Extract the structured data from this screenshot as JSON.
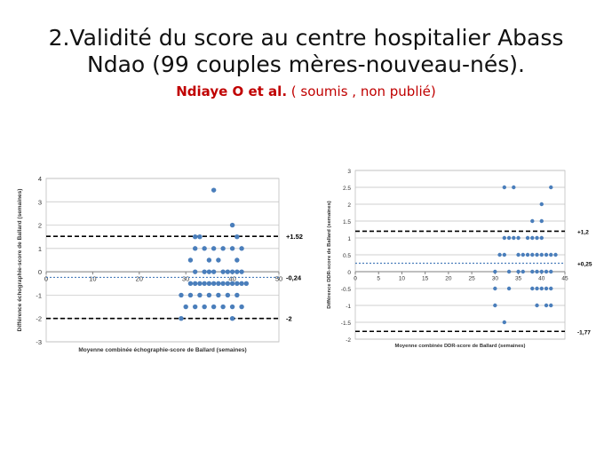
{
  "slide": {
    "title_line1": "2.Validité du score au centre hospitalier Abass",
    "title_line2": "Ndao (99 couples mères-nouveau-nés).",
    "citation_author": "Ndiaye O et al.",
    "citation_note": " ( soumis , non publié)"
  },
  "colors": {
    "points": "#4a7ebb",
    "grid": "#bfbfbf",
    "dash_limits": "#000000",
    "dash_mean": "#4a7ebb",
    "citation": "#c00000"
  },
  "chart_data": [
    {
      "type": "scatter",
      "title": "",
      "xlabel": "Moyenne combinée échographie-score de Ballard (semaines)",
      "ylabel": "Différence échographie-score de Ballard (semaines)",
      "xlim": [
        0,
        50
      ],
      "ylim": [
        -3,
        4
      ],
      "xticks": [
        0,
        10,
        20,
        30,
        40,
        50
      ],
      "yticks": [
        -3,
        -2,
        -1,
        0,
        1,
        2,
        3,
        4
      ],
      "grid": true,
      "reference_lines": [
        {
          "y": 1.52,
          "label": "+1.52",
          "style": "black-dashed"
        },
        {
          "y": -0.24,
          "label": "-0,24",
          "style": "blue-dashed"
        },
        {
          "y": -2,
          "label": "-2",
          "style": "black-dashed"
        }
      ],
      "points": [
        [
          36,
          3.5
        ],
        [
          40,
          2
        ],
        [
          32,
          1.5
        ],
        [
          33,
          1.5
        ],
        [
          41,
          1.5
        ],
        [
          32,
          1
        ],
        [
          34,
          1
        ],
        [
          36,
          1
        ],
        [
          38,
          1
        ],
        [
          40,
          1
        ],
        [
          42,
          1
        ],
        [
          31,
          0.5
        ],
        [
          35,
          0.5
        ],
        [
          37,
          0.5
        ],
        [
          41,
          0.5
        ],
        [
          32,
          0
        ],
        [
          34,
          0
        ],
        [
          35,
          0
        ],
        [
          36,
          0
        ],
        [
          38,
          0
        ],
        [
          39,
          0
        ],
        [
          40,
          0
        ],
        [
          41,
          0
        ],
        [
          42,
          0
        ],
        [
          31,
          -0.5
        ],
        [
          32,
          -0.5
        ],
        [
          33,
          -0.5
        ],
        [
          34,
          -0.5
        ],
        [
          35,
          -0.5
        ],
        [
          36,
          -0.5
        ],
        [
          37,
          -0.5
        ],
        [
          38,
          -0.5
        ],
        [
          39,
          -0.5
        ],
        [
          40,
          -0.5
        ],
        [
          41,
          -0.5
        ],
        [
          42,
          -0.5
        ],
        [
          43,
          -0.5
        ],
        [
          29,
          -1
        ],
        [
          31,
          -1
        ],
        [
          33,
          -1
        ],
        [
          35,
          -1
        ],
        [
          37,
          -1
        ],
        [
          39,
          -1
        ],
        [
          41,
          -1
        ],
        [
          30,
          -1.5
        ],
        [
          32,
          -1.5
        ],
        [
          34,
          -1.5
        ],
        [
          36,
          -1.5
        ],
        [
          38,
          -1.5
        ],
        [
          40,
          -1.5
        ],
        [
          42,
          -1.5
        ],
        [
          29,
          -2
        ],
        [
          40,
          -2
        ]
      ]
    },
    {
      "type": "scatter",
      "title": "",
      "xlabel": "Moyenne combinée DDR-score de Ballard (semaines)",
      "ylabel": "Différence DDR-score de Ballard (semaines)",
      "xlim": [
        0,
        45
      ],
      "ylim": [
        -2,
        3
      ],
      "xticks": [
        0,
        5,
        10,
        15,
        20,
        25,
        30,
        35,
        40,
        45
      ],
      "yticks": [
        -2,
        -1.5,
        -1,
        -0.5,
        0,
        0.5,
        1,
        1.5,
        2,
        2.5,
        3
      ],
      "grid": true,
      "reference_lines": [
        {
          "y": 1.2,
          "label": "+1,2",
          "style": "black-dashed"
        },
        {
          "y": 0.25,
          "label": "+0,25",
          "style": "blue-dashed"
        },
        {
          "y": -1.77,
          "label": "-1,77",
          "style": "black-dashed"
        }
      ],
      "points": [
        [
          32,
          2.5
        ],
        [
          34,
          2.5
        ],
        [
          42,
          2.5
        ],
        [
          40,
          2
        ],
        [
          38,
          1.5
        ],
        [
          40,
          1.5
        ],
        [
          32,
          1
        ],
        [
          33,
          1
        ],
        [
          34,
          1
        ],
        [
          35,
          1
        ],
        [
          37,
          1
        ],
        [
          38,
          1
        ],
        [
          39,
          1
        ],
        [
          40,
          1
        ],
        [
          31,
          0.5
        ],
        [
          32,
          0.5
        ],
        [
          35,
          0.5
        ],
        [
          36,
          0.5
        ],
        [
          37,
          0.5
        ],
        [
          38,
          0.5
        ],
        [
          39,
          0.5
        ],
        [
          40,
          0.5
        ],
        [
          41,
          0.5
        ],
        [
          42,
          0.5
        ],
        [
          43,
          0.5
        ],
        [
          30,
          0
        ],
        [
          33,
          0
        ],
        [
          35,
          0
        ],
        [
          36,
          0
        ],
        [
          38,
          0
        ],
        [
          39,
          0
        ],
        [
          40,
          0
        ],
        [
          41,
          0
        ],
        [
          42,
          0
        ],
        [
          30,
          -0.5
        ],
        [
          33,
          -0.5
        ],
        [
          38,
          -0.5
        ],
        [
          39,
          -0.5
        ],
        [
          40,
          -0.5
        ],
        [
          41,
          -0.5
        ],
        [
          42,
          -0.5
        ],
        [
          30,
          -1
        ],
        [
          39,
          -1
        ],
        [
          41,
          -1
        ],
        [
          42,
          -1
        ],
        [
          32,
          -1.5
        ]
      ]
    }
  ]
}
